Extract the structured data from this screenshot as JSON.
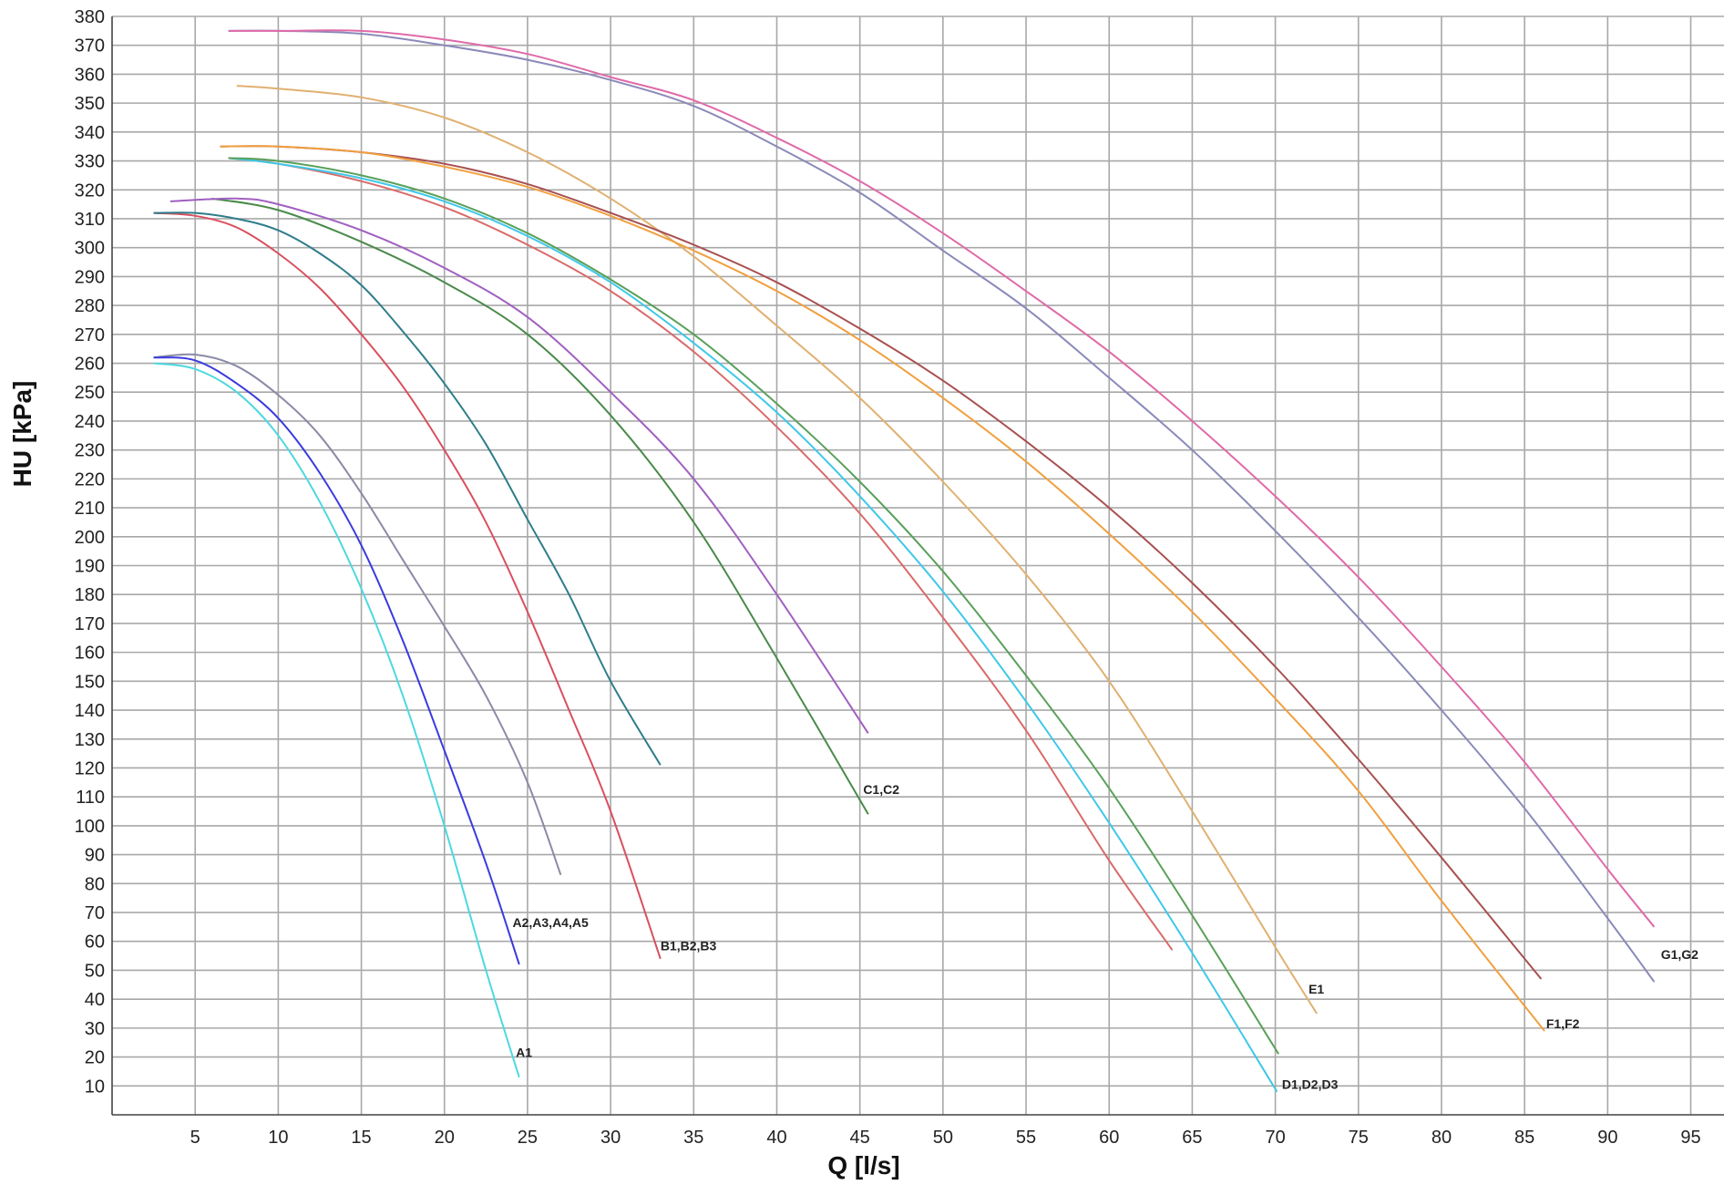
{
  "chart_data": {
    "type": "line",
    "title": "",
    "xlabel": "Q [l/s]",
    "ylabel": "HU [kPa]",
    "xlim": [
      0,
      97
    ],
    "ylim": [
      0,
      380
    ],
    "x_ticks": [
      5,
      10,
      15,
      20,
      25,
      30,
      35,
      40,
      45,
      50,
      55,
      60,
      65,
      70,
      75,
      80,
      85,
      90,
      95
    ],
    "y_ticks": [
      10,
      20,
      30,
      40,
      50,
      60,
      70,
      80,
      90,
      100,
      110,
      120,
      130,
      140,
      150,
      160,
      170,
      180,
      190,
      200,
      210,
      220,
      230,
      240,
      250,
      260,
      270,
      280,
      290,
      300,
      310,
      320,
      330,
      340,
      350,
      360,
      370,
      380
    ],
    "grid": true,
    "series": [
      {
        "label": "A1",
        "color": "#4dd8e0",
        "x": [
          2.5,
          5,
          7.5,
          10,
          12.5,
          15,
          17.5,
          20,
          22.5,
          24.5
        ],
        "y": [
          260,
          258,
          250,
          235,
          212,
          182,
          145,
          100,
          50,
          13
        ]
      },
      {
        "color": "#8a8aa6",
        "x": [
          2.5,
          5,
          7.5,
          10,
          12.5,
          15,
          17.5,
          20,
          22.5,
          25,
          27
        ],
        "y": [
          262,
          263,
          259,
          249,
          235,
          215,
          192,
          169,
          145,
          115,
          83
        ]
      },
      {
        "label": "A2,A3,A4,A5",
        "color": "#3a3ae0",
        "x": [
          2.5,
          5,
          7.5,
          10,
          12.5,
          15,
          17.5,
          20,
          22.5,
          24.5
        ],
        "y": [
          262,
          261,
          253,
          241,
          222,
          197,
          164,
          126,
          87,
          52
        ]
      },
      {
        "label": "B1,B2,B3",
        "color": "#d9505e",
        "x": [
          2.5,
          5,
          7.5,
          10,
          12.5,
          15,
          17.5,
          20,
          22.5,
          25,
          27.5,
          30,
          33
        ],
        "y": [
          312,
          311,
          307,
          298,
          286,
          270,
          252,
          230,
          205,
          174,
          140,
          105,
          54
        ]
      },
      {
        "color": "#2e7d8a",
        "x": [
          2.5,
          5,
          7.5,
          10,
          12.5,
          15,
          17.5,
          20,
          22.5,
          25,
          27.5,
          30,
          33
        ],
        "y": [
          312,
          312,
          310,
          306,
          298,
          287,
          271,
          253,
          232,
          206,
          180,
          150,
          121
        ]
      },
      {
        "label": "C1,C2",
        "color": "#4a8a4a",
        "x": [
          6,
          10,
          15,
          20,
          25,
          30,
          35,
          40,
          45.5
        ],
        "y": [
          317,
          313,
          302,
          288,
          270,
          242,
          205,
          158,
          104
        ]
      },
      {
        "color": "#a060c0",
        "x": [
          3.5,
          7.5,
          10,
          15,
          20,
          25,
          30,
          35,
          40,
          45.5
        ],
        "y": [
          316,
          317,
          315,
          306,
          293,
          276,
          250,
          220,
          180,
          132
        ]
      },
      {
        "color": "#d96a6a",
        "x": [
          7,
          10,
          15,
          20,
          25,
          30,
          35,
          40,
          45,
          50,
          55,
          60,
          63.8
        ],
        "y": [
          331,
          329,
          323,
          314,
          301,
          285,
          264,
          238,
          208,
          172,
          133,
          88,
          57
        ]
      },
      {
        "label": "D1,D2,D3",
        "color": "#3ec8e8",
        "x": [
          7,
          10,
          15,
          20,
          25,
          30,
          35,
          40,
          45,
          50,
          55,
          60,
          65,
          70.1
        ],
        "y": [
          331,
          329,
          324,
          316,
          304,
          288,
          267,
          243,
          214,
          181,
          143,
          101,
          56,
          8
        ]
      },
      {
        "color": "#5aa05a",
        "x": [
          7,
          10,
          15,
          20,
          25,
          30,
          35,
          40,
          45,
          50,
          55,
          60,
          65,
          70.2
        ],
        "y": [
          331,
          330,
          325,
          317,
          305,
          289,
          270,
          246,
          219,
          188,
          152,
          113,
          69,
          21
        ]
      },
      {
        "label": "E1",
        "color": "#e0b070",
        "x": [
          7.5,
          10,
          15,
          20,
          25,
          30,
          35,
          40,
          45,
          50,
          55,
          60,
          65,
          70,
          72.5
        ],
        "y": [
          356,
          355,
          352,
          345,
          333,
          317,
          297,
          273,
          248,
          219,
          187,
          150,
          105,
          58,
          35
        ]
      },
      {
        "color": "#a85050",
        "x": [
          6.5,
          10,
          15,
          20,
          25,
          30,
          35,
          40,
          45,
          50,
          55,
          60,
          65,
          70,
          75,
          80,
          86
        ],
        "y": [
          335,
          335,
          333,
          329,
          322,
          312,
          301,
          288,
          272,
          254,
          233,
          210,
          184,
          155,
          123,
          89,
          47
        ]
      },
      {
        "label": "F1,F2",
        "color": "#f0a040",
        "x": [
          6.5,
          10,
          15,
          20,
          25,
          30,
          35,
          40,
          45,
          50,
          55,
          60,
          65,
          70,
          75,
          80,
          86.2
        ],
        "y": [
          335,
          335,
          333,
          328,
          321,
          311,
          299,
          285,
          268,
          248,
          226,
          201,
          174,
          144,
          112,
          74,
          29
        ]
      },
      {
        "color": "#8a8aba",
        "x": [
          7,
          10,
          15,
          20,
          25,
          30,
          35,
          40,
          45,
          50,
          55,
          60,
          65,
          70,
          75,
          80,
          85,
          90,
          92.8
        ],
        "y": [
          375,
          375,
          374,
          370,
          365,
          358,
          349,
          335,
          319,
          299,
          279,
          255,
          230,
          202,
          172,
          140,
          106,
          68,
          46
        ]
      },
      {
        "label": "G1,G2",
        "color": "#e06aa8",
        "x": [
          7,
          10,
          15,
          20,
          25,
          30,
          35,
          40,
          45,
          50,
          55,
          60,
          65,
          70,
          75,
          80,
          85,
          90,
          92.8
        ],
        "y": [
          375,
          375,
          375,
          372,
          367,
          359,
          351,
          338,
          323,
          305,
          285,
          264,
          240,
          214,
          186,
          155,
          122,
          85,
          65
        ]
      }
    ],
    "annotations": [
      {
        "text": "A1",
        "x": 24.3,
        "y": 20
      },
      {
        "text": "A2,A3,A4,A5",
        "x": 24.1,
        "y": 65
      },
      {
        "text": "B1,B2,B3",
        "x": 33.0,
        "y": 57
      },
      {
        "text": "C1,C2",
        "x": 45.2,
        "y": 111
      },
      {
        "text": "D1,D2,D3",
        "x": 70.4,
        "y": 9
      },
      {
        "text": "E1",
        "x": 72.0,
        "y": 42
      },
      {
        "text": "F1,F2",
        "x": 86.3,
        "y": 30
      },
      {
        "text": "G1,G2",
        "x": 93.2,
        "y": 54
      }
    ]
  }
}
